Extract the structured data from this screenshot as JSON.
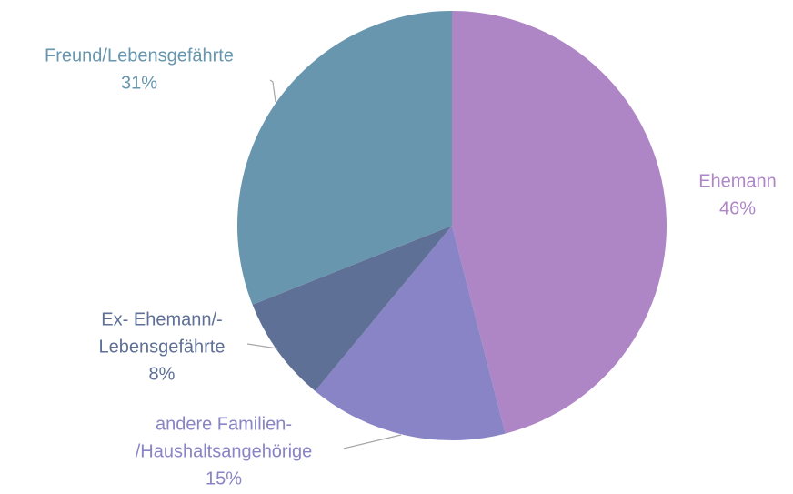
{
  "chart_data": {
    "type": "pie",
    "categories": [
      [
        "Ehemann"
      ],
      [
        "andere Familien-",
        "/Haushaltsangehörige"
      ],
      [
        "Ex- Ehemann/-",
        "Lebensgefährte"
      ],
      [
        "Freund/Lebensgefährte"
      ]
    ],
    "values": [
      46,
      15,
      8,
      31
    ],
    "value_labels": [
      "46%",
      "15%",
      "8%",
      "31%"
    ],
    "colors": [
      "#ae86c6",
      "#8884c6",
      "#5f7096",
      "#6896ae"
    ]
  }
}
